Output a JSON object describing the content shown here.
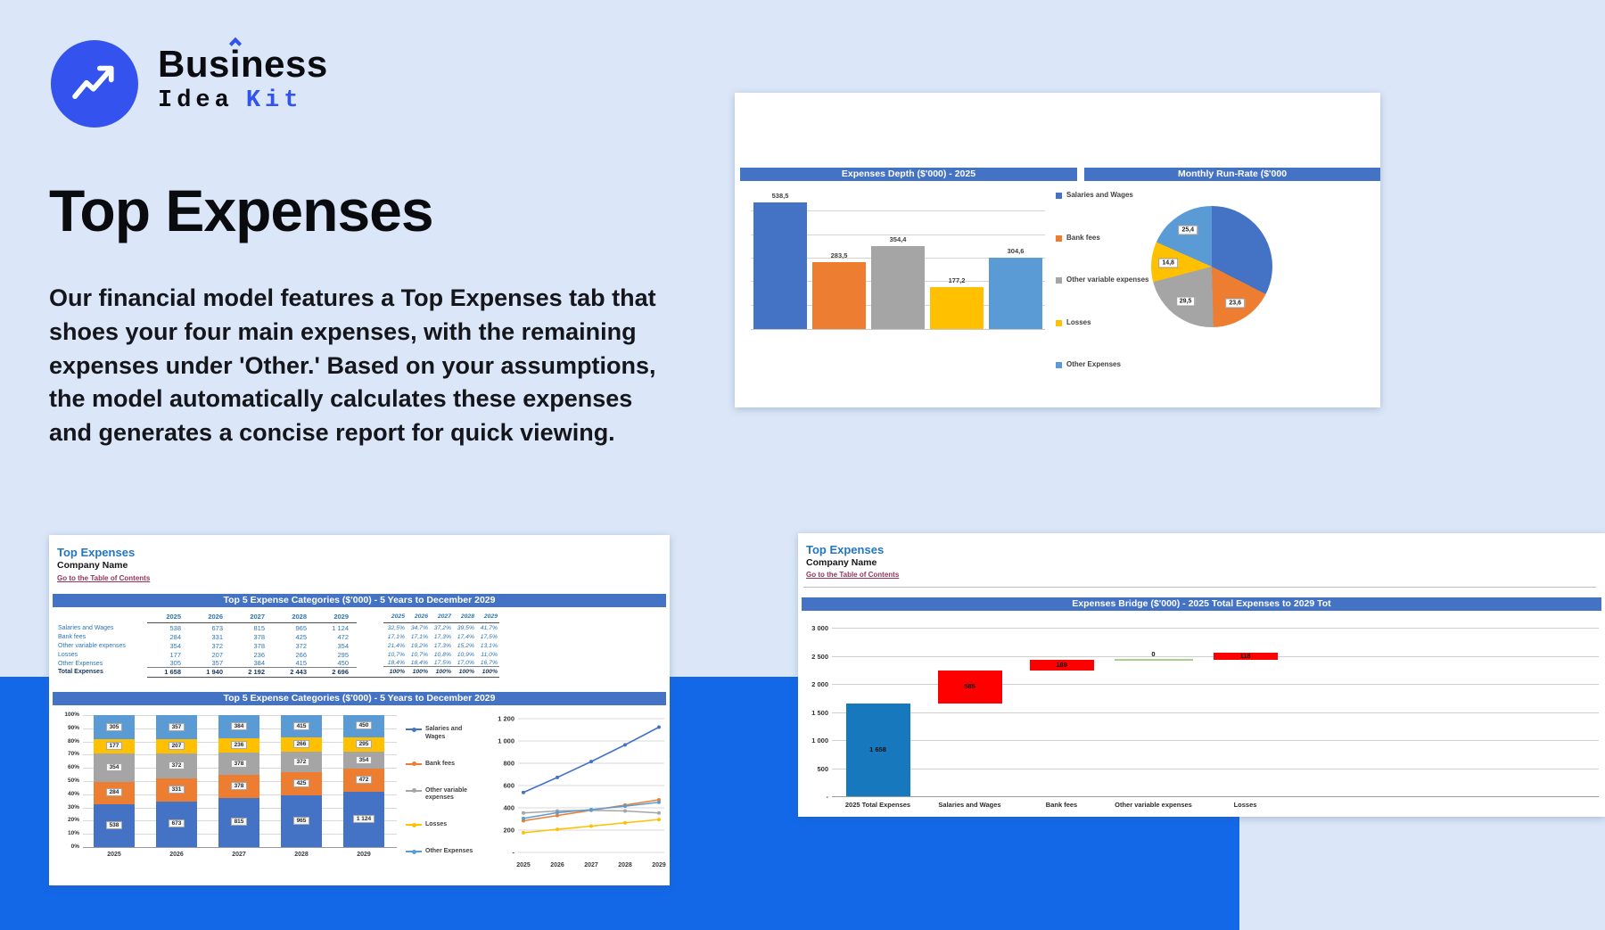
{
  "logo": {
    "brand_pre": "Bus",
    "brand_i": "i",
    "brand_post": "ness",
    "sub_word1": "Idea",
    "sub_word2": "Kit"
  },
  "hero": {
    "title": "Top Expenses",
    "description": "Our financial model features a Top Expenses tab that shoes your four main expenses, with the remaining expenses under 'Other.' Based on your assumptions, the model automatically calculates these expenses and generates a concise report for quick viewing."
  },
  "colors": {
    "series": [
      "#4472c4",
      "#ed7d31",
      "#a5a5a5",
      "#ffc000",
      "#5b9bd5"
    ],
    "header_bar": "#4472c4",
    "band": "#1368e8",
    "waterfall_total": "#1878be",
    "waterfall_increase": "#fe0000",
    "waterfall_zero": "#a9d18e"
  },
  "top_card": {
    "bar_header": "Expenses Depth ($'000) - 2025",
    "pie_header": "Monthly Run-Rate ($'000",
    "legend": [
      "Salaries and Wages",
      "Bank fees",
      "Other variable expenses",
      "Losses",
      "Other Expenses"
    ]
  },
  "sheet1": {
    "title": "Top Expenses",
    "company": "Company Name",
    "link": "Go to the Table of Contents",
    "table_header": "Top 5 Expense Categories ($'000) - 5 Years to December 2029",
    "chart_header": "Top 5 Expense Categories ($'000) - 5 Years to December 2029",
    "years": [
      "2025",
      "2026",
      "2027",
      "2028",
      "2029"
    ],
    "rows": [
      {
        "label": "Salaries and Wages",
        "values": [
          "538",
          "673",
          "815",
          "965",
          "1 124"
        ],
        "pcts": [
          "32,5%",
          "34,7%",
          "37,2%",
          "39,5%",
          "41,7%"
        ]
      },
      {
        "label": "Bank fees",
        "values": [
          "284",
          "331",
          "378",
          "425",
          "472"
        ],
        "pcts": [
          "17,1%",
          "17,1%",
          "17,3%",
          "17,4%",
          "17,5%"
        ]
      },
      {
        "label": "Other variable expenses",
        "values": [
          "354",
          "372",
          "378",
          "372",
          "354"
        ],
        "pcts": [
          "21,4%",
          "19,2%",
          "17,3%",
          "15,2%",
          "13,1%"
        ]
      },
      {
        "label": "Losses",
        "values": [
          "177",
          "207",
          "236",
          "266",
          "295"
        ],
        "pcts": [
          "10,7%",
          "10,7%",
          "10,8%",
          "10,9%",
          "11,0%"
        ]
      },
      {
        "label": "Other Expenses",
        "values": [
          "305",
          "357",
          "384",
          "415",
          "450"
        ],
        "pcts": [
          "18,4%",
          "18,4%",
          "17,5%",
          "17,0%",
          "16,7%"
        ]
      }
    ],
    "total": {
      "label": "Total Expenses",
      "values": [
        "1 658",
        "1 940",
        "2 192",
        "2 443",
        "2 696"
      ],
      "pcts": [
        "100%",
        "100%",
        "100%",
        "100%",
        "100%"
      ]
    }
  },
  "sheet2": {
    "title": "Top Expenses",
    "company": "Company Name",
    "link": "Go to the Table of Contents",
    "chart_header": "Expenses Bridge ($'000) - 2025 Total Expenses to 2029 Tot"
  },
  "chart_data": [
    {
      "id": "expenses_depth_bar",
      "type": "bar",
      "title": "Expenses Depth ($'000) - 2025",
      "categories": [
        "Salaries and Wages",
        "Bank fees",
        "Other variable expenses",
        "Losses",
        "Other Expenses"
      ],
      "values": [
        538.5,
        283.5,
        354.4,
        177.2,
        304.6
      ],
      "labels": [
        "538,5",
        "283,5",
        "354,4",
        "177,2",
        "304,6"
      ],
      "ylim": [
        0,
        600
      ],
      "grid_step": 100,
      "legend_position": "right"
    },
    {
      "id": "monthly_run_rate_pie",
      "type": "pie",
      "title": "Monthly Run-Rate ($'000",
      "slices": [
        {
          "name": "Salaries and Wages",
          "value": 44.9,
          "label": ""
        },
        {
          "name": "Bank fees",
          "value": 23.6,
          "label": "23,6"
        },
        {
          "name": "Other variable expenses",
          "value": 29.5,
          "label": "29,5"
        },
        {
          "name": "Losses",
          "value": 14.8,
          "label": "14,8"
        },
        {
          "name": "Other Expenses",
          "value": 25.4,
          "label": "25,4"
        }
      ]
    },
    {
      "id": "top5_stacked",
      "type": "bar",
      "subtype": "stacked-100",
      "title": "Top 5 Expense Categories ($'000) - 5 Years to December 2029",
      "categories": [
        "2025",
        "2026",
        "2027",
        "2028",
        "2029"
      ],
      "series": [
        {
          "name": "Salaries and Wages",
          "values": [
            538,
            673,
            815,
            965,
            1124
          ],
          "labels": [
            "538",
            "673",
            "815",
            "965",
            "1 124"
          ]
        },
        {
          "name": "Bank fees",
          "values": [
            284,
            331,
            378,
            425,
            472
          ],
          "labels": [
            "284",
            "331",
            "378",
            "425",
            "472"
          ]
        },
        {
          "name": "Other variable expenses",
          "values": [
            354,
            372,
            378,
            372,
            354
          ],
          "labels": [
            "354",
            "372",
            "378",
            "372",
            "354"
          ]
        },
        {
          "name": "Losses",
          "values": [
            177,
            207,
            236,
            266,
            295
          ],
          "labels": [
            "177",
            "207",
            "236",
            "266",
            "295"
          ]
        },
        {
          "name": "Other Expenses",
          "values": [
            305,
            357,
            384,
            415,
            450
          ],
          "labels": [
            "305",
            "357",
            "384",
            "415",
            "450"
          ]
        }
      ],
      "totals": [
        1658,
        1940,
        2192,
        2443,
        2696
      ],
      "yticks": [
        "0%",
        "10%",
        "20%",
        "30%",
        "40%",
        "50%",
        "60%",
        "70%",
        "80%",
        "90%",
        "100%"
      ]
    },
    {
      "id": "top5_lines",
      "type": "line",
      "x": [
        "2025",
        "2026",
        "2027",
        "2028",
        "2029"
      ],
      "series": [
        {
          "name": "Salaries and Wages",
          "values": [
            538,
            673,
            815,
            965,
            1124
          ]
        },
        {
          "name": "Bank fees",
          "values": [
            284,
            331,
            378,
            425,
            472
          ]
        },
        {
          "name": "Other variable expenses",
          "values": [
            354,
            372,
            378,
            372,
            354
          ]
        },
        {
          "name": "Losses",
          "values": [
            177,
            207,
            236,
            266,
            295
          ]
        },
        {
          "name": "Other Expenses",
          "values": [
            305,
            357,
            384,
            415,
            450
          ]
        }
      ],
      "ylim": [
        0,
        1200
      ],
      "yticks": [
        "-",
        "200",
        "400",
        "600",
        "800",
        "1 000",
        "1 200"
      ]
    },
    {
      "id": "expenses_bridge",
      "type": "waterfall",
      "title": "Expenses Bridge ($'000) - 2025 Total Expenses to 2029 Tot",
      "categories": [
        "2025 Total Expenses",
        "Salaries and Wages",
        "Bank fees",
        "Other variable expenses",
        "Losses"
      ],
      "bars": [
        {
          "label": "1 658",
          "start": 0,
          "end": 1658,
          "kind": "total"
        },
        {
          "label": "585",
          "start": 1658,
          "end": 2243,
          "kind": "increase"
        },
        {
          "label": "189",
          "start": 2243,
          "end": 2432,
          "kind": "increase"
        },
        {
          "label": "0",
          "start": 2426,
          "end": 2438,
          "kind": "zero"
        },
        {
          "label": "118",
          "start": 2432,
          "end": 2550,
          "kind": "increase"
        }
      ],
      "ylim": [
        0,
        3000
      ],
      "yticks": [
        "-",
        "500",
        "1 000",
        "1 500",
        "2 000",
        "2 500",
        "3 000"
      ]
    }
  ]
}
